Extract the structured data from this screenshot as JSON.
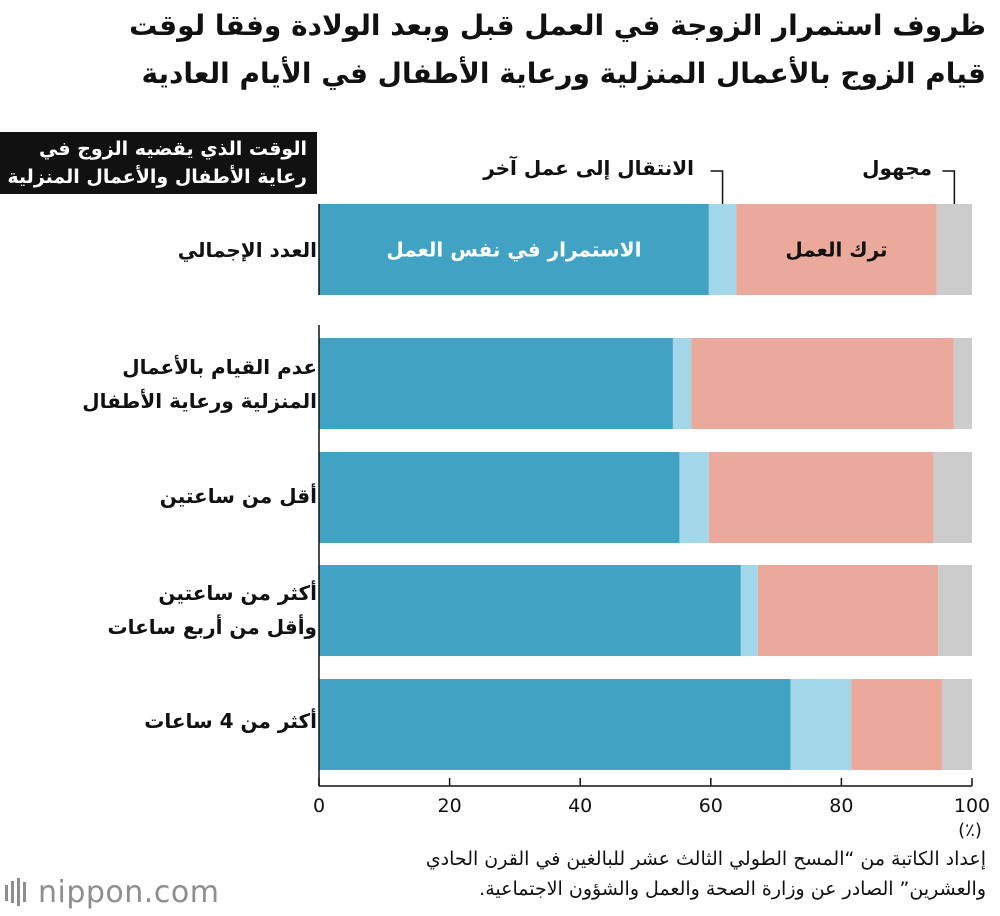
{
  "title_lines": [
    "ظروف استمرار الزوجة في العمل قبل وبعد الولادة وفقا لوقت",
    "قيام الزوج بالأعمال المنزلية ورعاية الأطفال في الأيام العادية"
  ],
  "header_lines": [
    "الوقت الذي يقضيه الزوج في",
    "رعاية الأطفال والأعمال المنزلية"
  ],
  "callouts": {
    "transfer": "الانتقال إلى عمل آخر",
    "unknown": "مجهول"
  },
  "bar_labels": {
    "continue": "الاستمرار في نفس العمل",
    "quit": "ترك العمل"
  },
  "unit_label": "(٪)",
  "footnote_lines": [
    "إعداد الكاتبة من “المسح الطولي الثالث عشر للبالغين في القرن الحادي",
    "والعشرين” الصادر عن وزارة الصحة والعمل والشؤون الاجتماعية."
  ],
  "logo": {
    "text": "nippon.com",
    "color": "#8e8e8e"
  },
  "chart_data": {
    "type": "bar",
    "orientation": "horizontal",
    "stacked": true,
    "categories": [
      [
        "العدد الإجمالي"
      ],
      [
        "عدم القيام بالأعمال",
        "المنزلية ورعاية الأطفال"
      ],
      [
        "أقل من ساعتين"
      ],
      [
        "أكثر من ساعتين",
        "وأقل من أربع ساعات"
      ],
      [
        "أكثر من 4 ساعات"
      ]
    ],
    "series": [
      {
        "name": "الاستمرار في نفس العمل",
        "color": "#41a2c4",
        "values": [
          59.7,
          54.2,
          55.2,
          64.6,
          72.2
        ]
      },
      {
        "name": "الانتقال إلى عمل آخر",
        "color": "#a3d8ea",
        "values": [
          4.2,
          2.8,
          4.5,
          2.6,
          9.3
        ]
      },
      {
        "name": "ترك العمل",
        "color": "#eaa99a",
        "values": [
          30.7,
          40.2,
          34.4,
          27.6,
          13.9
        ]
      },
      {
        "name": "مجهول",
        "color": "#cccccc",
        "values": [
          5.4,
          2.8,
          5.9,
          5.2,
          4.6
        ]
      }
    ],
    "xlim": [
      0,
      100
    ],
    "xticks": [
      "0",
      "20",
      "40",
      "60",
      "80",
      "100"
    ],
    "grid": false,
    "legend": "callouts"
  }
}
